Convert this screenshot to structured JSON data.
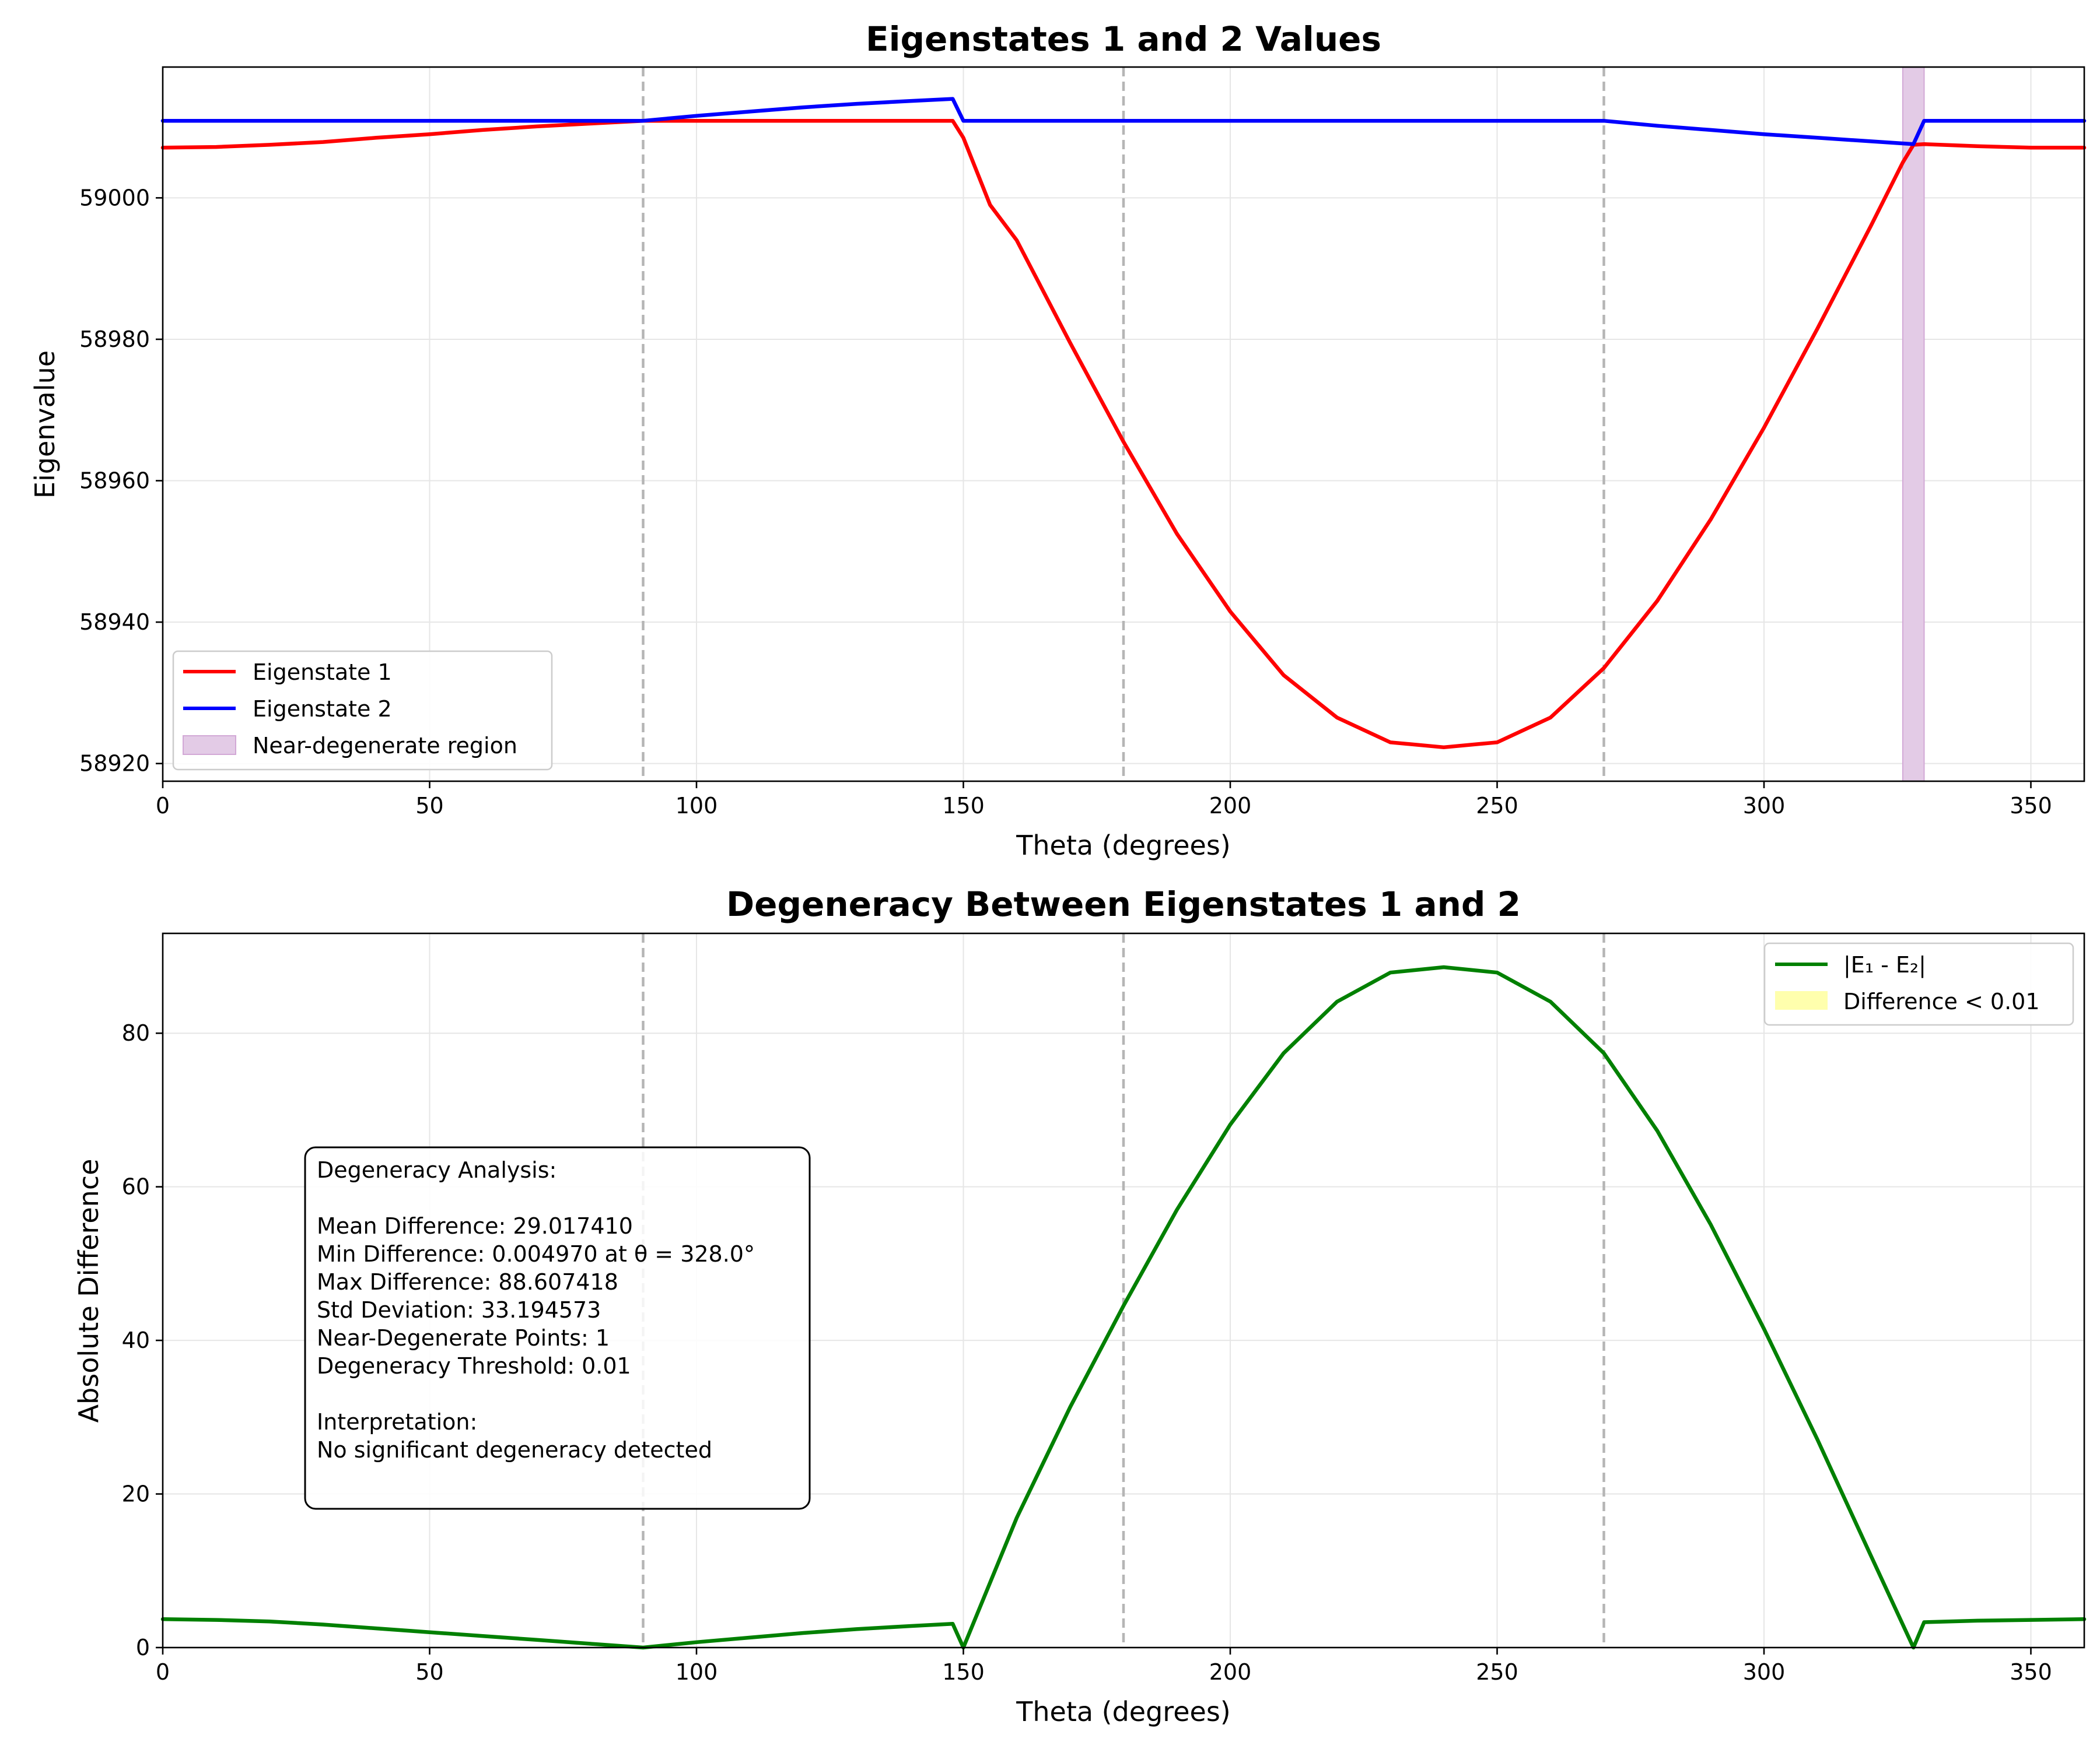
{
  "chart_data": [
    {
      "type": "line",
      "title": "Eigenstates 1 and 2 Values",
      "xlabel": "Theta (degrees)",
      "ylabel": "Eigenvalue",
      "xlim": [
        0,
        360
      ],
      "ylim": [
        58917.5,
        59018.5
      ],
      "xticks": [
        0,
        50,
        100,
        150,
        200,
        250,
        300,
        350
      ],
      "yticks": [
        58920,
        58940,
        58960,
        58980,
        59000
      ],
      "grid": true,
      "legend_position": "lower-left",
      "reference_lines_x": [
        90,
        180,
        270
      ],
      "series": [
        {
          "name": "Eigenstate 1",
          "color": "#ff0000",
          "x": [
            0,
            10,
            20,
            30,
            40,
            50,
            60,
            70,
            80,
            90,
            100,
            110,
            120,
            130,
            140,
            148,
            150,
            155,
            160,
            170,
            180,
            190,
            200,
            210,
            220,
            230,
            240,
            250,
            260,
            270,
            280,
            290,
            300,
            310,
            320,
            326,
            328,
            330,
            340,
            350,
            360
          ],
          "y": [
            59007.1,
            59007.2,
            59007.5,
            59007.9,
            59008.5,
            59009.0,
            59009.6,
            59010.1,
            59010.5,
            59010.9,
            59010.9,
            59010.9,
            59010.9,
            59010.9,
            59010.9,
            59010.9,
            59008.5,
            58999.0,
            58994.0,
            58979.5,
            58965.5,
            58952.5,
            58941.5,
            58932.5,
            58926.5,
            58923.0,
            58922.3,
            58923.0,
            58926.5,
            58933.5,
            58943.0,
            58954.5,
            58967.5,
            58981.5,
            58996.0,
            59005.0,
            59007.5,
            59007.6,
            59007.3,
            59007.1,
            59007.1
          ]
        },
        {
          "name": "Eigenstate 2",
          "color": "#0000ff",
          "x": [
            0,
            10,
            20,
            30,
            40,
            50,
            60,
            70,
            80,
            90,
            100,
            110,
            120,
            130,
            140,
            148,
            150,
            160,
            170,
            180,
            190,
            200,
            210,
            220,
            230,
            240,
            250,
            260,
            270,
            280,
            290,
            300,
            310,
            320,
            328,
            330,
            340,
            350,
            360
          ],
          "y": [
            59010.9,
            59010.9,
            59010.9,
            59010.9,
            59010.9,
            59010.9,
            59010.9,
            59010.9,
            59010.9,
            59010.9,
            59011.6,
            59012.2,
            59012.8,
            59013.3,
            59013.7,
            59014.0,
            59010.9,
            59010.9,
            59010.9,
            59010.9,
            59010.9,
            59010.9,
            59010.9,
            59010.9,
            59010.9,
            59010.9,
            59010.9,
            59010.9,
            59010.9,
            59010.2,
            59009.6,
            59009.0,
            59008.5,
            59008.0,
            59007.6,
            59010.9,
            59010.9,
            59010.9,
            59010.9
          ]
        }
      ],
      "shaded_regions": [
        {
          "name": "Near-degenerate region",
          "color": "#e3cbe6",
          "x_start": 326,
          "x_end": 330
        }
      ]
    },
    {
      "type": "line",
      "title": "Degeneracy Between Eigenstates 1 and 2",
      "xlabel": "Theta (degrees)",
      "ylabel": "Absolute Difference",
      "xlim": [
        0,
        360
      ],
      "ylim": [
        0,
        93
      ],
      "xticks": [
        0,
        50,
        100,
        150,
        200,
        250,
        300,
        350
      ],
      "yticks": [
        0,
        20,
        40,
        60,
        80
      ],
      "grid": true,
      "legend_position": "top-right",
      "reference_lines_x": [
        90,
        180,
        270
      ],
      "series": [
        {
          "name": "|E₁ - E₂|",
          "color": "#008000",
          "x": [
            0,
            10,
            20,
            30,
            40,
            50,
            60,
            70,
            80,
            90,
            100,
            110,
            120,
            130,
            140,
            148,
            150,
            160,
            170,
            180,
            190,
            200,
            210,
            220,
            230,
            240,
            250,
            260,
            270,
            280,
            290,
            300,
            310,
            320,
            328,
            330,
            340,
            350,
            360
          ],
          "y": [
            3.7,
            3.6,
            3.4,
            3.0,
            2.5,
            2.0,
            1.5,
            1.0,
            0.5,
            0.0,
            0.7,
            1.3,
            1.9,
            2.4,
            2.8,
            3.1,
            0.0,
            16.9,
            31.3,
            44.5,
            57.0,
            68.1,
            77.4,
            84.1,
            87.9,
            88.6,
            87.9,
            84.1,
            77.4,
            67.3,
            55.1,
            41.5,
            27.1,
            12.0,
            0.0,
            3.3,
            3.5,
            3.6,
            3.7
          ]
        }
      ],
      "shaded_regions": [
        {
          "name": "Difference < 0.01",
          "color": "#ffff99"
        }
      ],
      "annotation": {
        "lines": [
          "Degeneracy Analysis:",
          "",
          "Mean Difference: 29.017410",
          "Min Difference: 0.004970 at θ = 328.0°",
          "Max Difference: 88.607418",
          "Std Deviation: 33.194573",
          "Near-Degenerate Points: 1",
          "Degeneracy Threshold: 0.01",
          "",
          "Interpretation:",
          "No significant degeneracy detected"
        ]
      }
    }
  ]
}
